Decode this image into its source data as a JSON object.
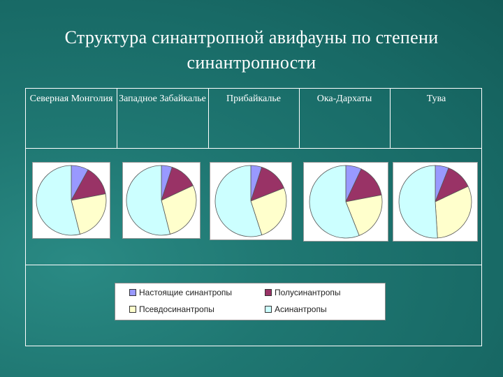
{
  "title": {
    "line1": "Структура синантропной авифауны по степени",
    "line2": "синантропности"
  },
  "regions": [
    "Северная Монголия",
    "Западное Забайкалье",
    "Прибайкалье",
    "Ока-Дархаты",
    "Тува"
  ],
  "legend": [
    {
      "label": "Настоящие синантропы",
      "color": "#9999ff"
    },
    {
      "label": "Полусинантропы",
      "color": "#993366"
    },
    {
      "label": "Псевдосинантропы",
      "color": "#ffffcc"
    },
    {
      "label": "Асинантропы",
      "color": "#ccffff"
    }
  ],
  "chart_data": [
    {
      "type": "pie",
      "title": "Северная Монголия",
      "categories": [
        "Настоящие синантропы",
        "Полусинантропы",
        "Псевдосинантропы",
        "Асинантропы"
      ],
      "values": [
        8,
        14,
        24,
        54
      ]
    },
    {
      "type": "pie",
      "title": "Западное Забайкалье",
      "categories": [
        "Настоящие синантропы",
        "Полусинантропы",
        "Псевдосинантропы",
        "Асинантропы"
      ],
      "values": [
        5,
        13,
        28,
        54
      ]
    },
    {
      "type": "pie",
      "title": "Прибайкалье",
      "categories": [
        "Настоящие синантропы",
        "Полусинантропы",
        "Псевдосинантропы",
        "Асинантропы"
      ],
      "values": [
        5,
        14,
        26,
        55
      ]
    },
    {
      "type": "pie",
      "title": "Ока-Дархаты",
      "categories": [
        "Настоящие синантропы",
        "Полусинантропы",
        "Псевдосинантропы",
        "Асинантропы"
      ],
      "values": [
        7,
        15,
        22,
        56
      ]
    },
    {
      "type": "pie",
      "title": "Тува",
      "categories": [
        "Настоящие синантропы",
        "Полусинантропы",
        "Псевдосинантропы",
        "Асинантропы"
      ],
      "values": [
        6,
        12,
        31,
        51
      ]
    }
  ]
}
